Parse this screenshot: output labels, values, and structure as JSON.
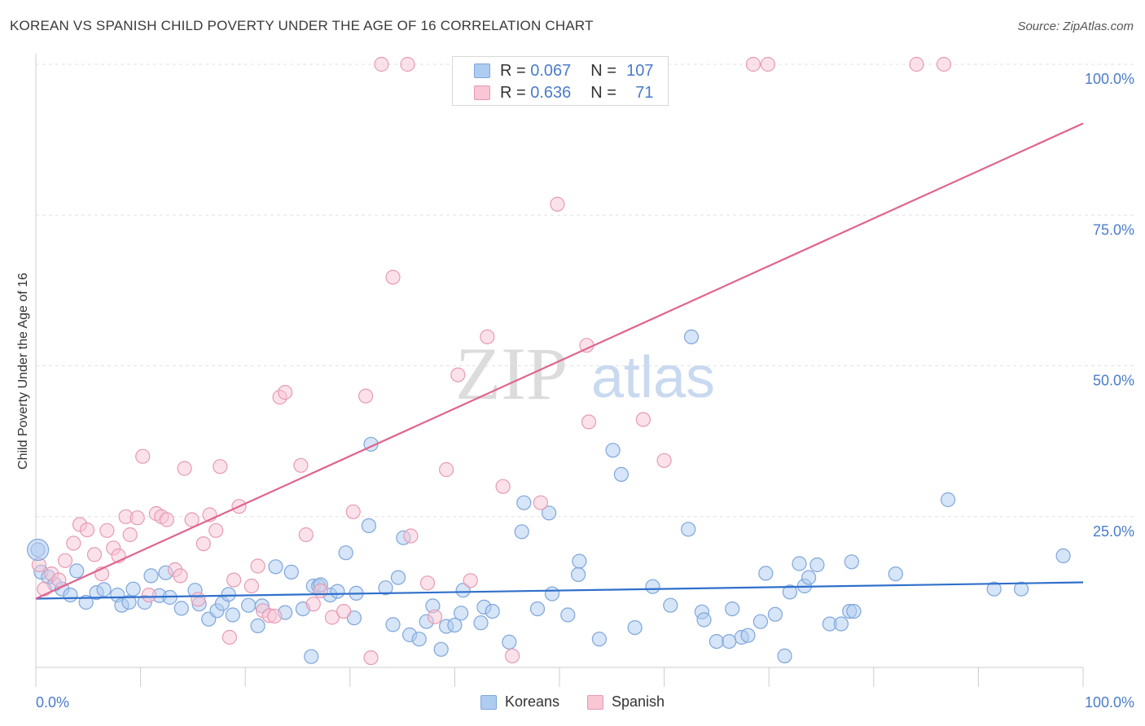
{
  "title": "KOREAN VS SPANISH CHILD POVERTY UNDER THE AGE OF 16 CORRELATION CHART",
  "source": "Source: ZipAtlas.com",
  "watermark": {
    "zip": "ZIP",
    "atlas": "atlas"
  },
  "legend": {
    "rows": [
      {
        "r_label": "R = ",
        "r_value": "0.067",
        "n_label": "N = ",
        "n_value": "107",
        "color": "#aecbf0",
        "border": "#7ea6dc"
      },
      {
        "r_label": "R = ",
        "r_value": "0.636",
        "n_label": "N = ",
        "n_value": "71",
        "color": "#f8c6d5",
        "border": "#e79ab3"
      }
    ]
  },
  "bottom_legend": [
    {
      "label": "Koreans",
      "color": "#aecbf0",
      "border": "#7ea6dc"
    },
    {
      "label": "Spanish",
      "color": "#f8c6d5",
      "border": "#e79ab3"
    }
  ],
  "chart_data": {
    "type": "scatter",
    "title": "KOREAN VS SPANISH CHILD POVERTY UNDER THE AGE OF 16 CORRELATION CHART",
    "xlabel": "",
    "ylabel": "Child Poverty Under the Age of 16",
    "xlim": [
      0,
      100
    ],
    "ylim": [
      0,
      100
    ],
    "x_tick_labels": [
      "0.0%",
      "100.0%"
    ],
    "y_tick_labels": [
      "25.0%",
      "50.0%",
      "75.0%",
      "100.0%"
    ],
    "y_ticks": [
      25,
      50,
      75,
      100
    ],
    "grid": true,
    "legend_position": "top-center",
    "series": [
      {
        "name": "Koreans",
        "color": "#7ea6dc",
        "fill": "#aecbf0",
        "trend": {
          "x": [
            0,
            100
          ],
          "y": [
            11.4,
            14.1
          ],
          "color": "#2f6fcb"
        },
        "points": [
          [
            0.2,
            19.5
          ],
          [
            0.5,
            15.8
          ],
          [
            1.2,
            15.0
          ],
          [
            1.8,
            13.8
          ],
          [
            2.5,
            13.0
          ],
          [
            3.3,
            12.0
          ],
          [
            3.9,
            16.0
          ],
          [
            4.8,
            10.8
          ],
          [
            5.8,
            12.4
          ],
          [
            6.5,
            12.9
          ],
          [
            7.8,
            12.0
          ],
          [
            8.2,
            10.3
          ],
          [
            8.9,
            10.8
          ],
          [
            9.3,
            13.0
          ],
          [
            10.4,
            10.8
          ],
          [
            11.0,
            15.2
          ],
          [
            11.8,
            11.9
          ],
          [
            12.4,
            15.7
          ],
          [
            12.8,
            11.6
          ],
          [
            13.9,
            9.8
          ],
          [
            15.2,
            12.8
          ],
          [
            15.6,
            10.5
          ],
          [
            16.5,
            8.0
          ],
          [
            17.3,
            9.4
          ],
          [
            17.8,
            10.6
          ],
          [
            18.4,
            12.1
          ],
          [
            18.8,
            8.7
          ],
          [
            20.3,
            10.3
          ],
          [
            21.2,
            6.9
          ],
          [
            21.6,
            10.2
          ],
          [
            22.9,
            16.7
          ],
          [
            23.8,
            9.1
          ],
          [
            24.4,
            15.8
          ],
          [
            25.5,
            9.7
          ],
          [
            26.3,
            1.8
          ],
          [
            26.5,
            13.5
          ],
          [
            27.0,
            13.5
          ],
          [
            27.2,
            13.7
          ],
          [
            28.1,
            12.0
          ],
          [
            28.8,
            12.6
          ],
          [
            29.6,
            19.0
          ],
          [
            30.4,
            8.2
          ],
          [
            30.6,
            12.3
          ],
          [
            31.8,
            23.5
          ],
          [
            32.0,
            37.0
          ],
          [
            33.4,
            13.2
          ],
          [
            34.1,
            7.1
          ],
          [
            34.6,
            14.9
          ],
          [
            35.1,
            21.5
          ],
          [
            35.7,
            5.4
          ],
          [
            36.6,
            4.7
          ],
          [
            37.3,
            7.6
          ],
          [
            37.9,
            10.2
          ],
          [
            38.7,
            3.0
          ],
          [
            39.2,
            6.8
          ],
          [
            40.0,
            7.0
          ],
          [
            40.6,
            9.0
          ],
          [
            40.8,
            12.8
          ],
          [
            42.5,
            7.4
          ],
          [
            42.8,
            10.0
          ],
          [
            43.6,
            9.3
          ],
          [
            45.2,
            4.2
          ],
          [
            46.4,
            22.5
          ],
          [
            46.6,
            27.3
          ],
          [
            47.9,
            9.7
          ],
          [
            49.0,
            25.6
          ],
          [
            49.3,
            12.2
          ],
          [
            50.8,
            8.7
          ],
          [
            51.8,
            15.4
          ],
          [
            51.9,
            17.6
          ],
          [
            53.8,
            4.7
          ],
          [
            55.1,
            36.0
          ],
          [
            55.9,
            32.0
          ],
          [
            57.2,
            6.6
          ],
          [
            58.9,
            13.4
          ],
          [
            60.6,
            10.3
          ],
          [
            62.3,
            22.9
          ],
          [
            62.6,
            54.8
          ],
          [
            63.6,
            9.2
          ],
          [
            63.8,
            7.9
          ],
          [
            65.0,
            4.3
          ],
          [
            66.2,
            4.3
          ],
          [
            66.5,
            9.7
          ],
          [
            67.4,
            5.0
          ],
          [
            68.0,
            5.3
          ],
          [
            69.2,
            7.6
          ],
          [
            69.7,
            15.6
          ],
          [
            70.6,
            8.8
          ],
          [
            71.5,
            1.9
          ],
          [
            72.0,
            12.5
          ],
          [
            72.9,
            17.2
          ],
          [
            73.4,
            13.5
          ],
          [
            73.8,
            14.9
          ],
          [
            74.6,
            17.0
          ],
          [
            75.8,
            7.2
          ],
          [
            76.9,
            7.2
          ],
          [
            77.7,
            9.3
          ],
          [
            77.9,
            17.5
          ],
          [
            78.1,
            9.3
          ],
          [
            82.1,
            15.5
          ],
          [
            87.1,
            27.8
          ],
          [
            91.5,
            13.0
          ],
          [
            94.1,
            13.0
          ],
          [
            98.1,
            18.5
          ]
        ]
      },
      {
        "name": "Spanish",
        "color": "#e79ab3",
        "fill": "#f8c6d5",
        "trend": {
          "x": [
            0,
            100
          ],
          "y": [
            11.4,
            90.2
          ],
          "color": "#e0648e"
        },
        "points": [
          [
            0.3,
            17.0
          ],
          [
            0.8,
            13.0
          ],
          [
            1.5,
            15.5
          ],
          [
            2.2,
            14.5
          ],
          [
            2.8,
            17.7
          ],
          [
            3.6,
            20.6
          ],
          [
            4.2,
            23.7
          ],
          [
            4.9,
            22.8
          ],
          [
            5.6,
            18.7
          ],
          [
            6.3,
            15.5
          ],
          [
            6.8,
            22.7
          ],
          [
            7.4,
            19.8
          ],
          [
            7.9,
            18.5
          ],
          [
            8.6,
            25.0
          ],
          [
            9.0,
            22.0
          ],
          [
            9.7,
            24.8
          ],
          [
            10.2,
            35.0
          ],
          [
            10.8,
            12.0
          ],
          [
            11.5,
            25.5
          ],
          [
            12.0,
            25.0
          ],
          [
            12.5,
            24.5
          ],
          [
            13.3,
            16.2
          ],
          [
            13.8,
            15.2
          ],
          [
            14.2,
            33.0
          ],
          [
            14.9,
            24.5
          ],
          [
            15.5,
            11.3
          ],
          [
            16.0,
            20.5
          ],
          [
            16.6,
            25.3
          ],
          [
            17.2,
            22.7
          ],
          [
            17.6,
            33.3
          ],
          [
            18.5,
            5.0
          ],
          [
            18.9,
            14.5
          ],
          [
            19.4,
            26.7
          ],
          [
            20.6,
            13.5
          ],
          [
            21.2,
            16.8
          ],
          [
            21.7,
            9.4
          ],
          [
            22.3,
            8.6
          ],
          [
            22.8,
            8.5
          ],
          [
            23.3,
            44.8
          ],
          [
            23.8,
            45.6
          ],
          [
            25.3,
            33.5
          ],
          [
            25.8,
            22.0
          ],
          [
            26.5,
            10.5
          ],
          [
            27.2,
            12.7
          ],
          [
            28.3,
            8.3
          ],
          [
            29.4,
            9.3
          ],
          [
            30.3,
            25.8
          ],
          [
            31.5,
            45.0
          ],
          [
            32.0,
            1.6
          ],
          [
            33.0,
            100.0
          ],
          [
            34.1,
            64.7
          ],
          [
            35.5,
            100.0
          ],
          [
            35.8,
            21.8
          ],
          [
            37.4,
            14.0
          ],
          [
            38.1,
            8.4
          ],
          [
            39.2,
            32.8
          ],
          [
            40.3,
            48.5
          ],
          [
            41.5,
            14.4
          ],
          [
            43.1,
            54.8
          ],
          [
            44.6,
            30.0
          ],
          [
            45.5,
            1.9
          ],
          [
            48.2,
            27.3
          ],
          [
            49.8,
            76.8
          ],
          [
            52.6,
            53.4
          ],
          [
            52.8,
            40.7
          ],
          [
            58.0,
            41.1
          ],
          [
            60.0,
            34.3
          ],
          [
            68.5,
            100.0
          ],
          [
            69.9,
            100.0
          ],
          [
            84.1,
            100.0
          ],
          [
            86.7,
            100.0
          ]
        ]
      }
    ]
  }
}
